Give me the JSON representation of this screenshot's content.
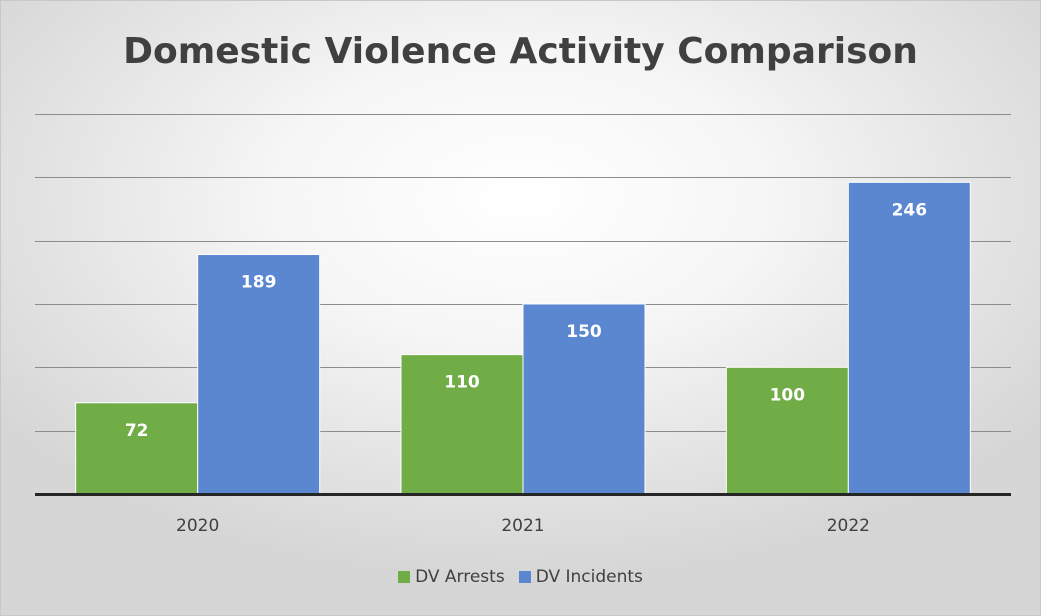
{
  "chart_data": {
    "type": "bar",
    "title": "Domestic Violence Activity Comparison",
    "categories": [
      "2020",
      "2021",
      "2022"
    ],
    "series": [
      {
        "name": "DV Arrests",
        "values": [
          72,
          110,
          100
        ],
        "color": "#70ad47"
      },
      {
        "name": "DV Incidents",
        "values": [
          189,
          150,
          246
        ],
        "color": "#5b86d0"
      }
    ],
    "ylim": [
      0,
      300
    ],
    "gridline_step": 50,
    "grid": true,
    "legend": "bottom",
    "data_labels": true
  }
}
